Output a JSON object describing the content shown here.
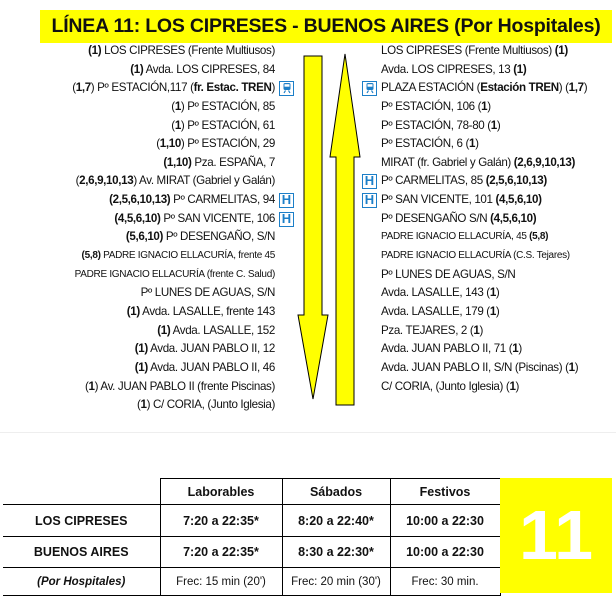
{
  "title": "LÍNEA 11:  LOS CIPRESES - BUENOS AIRES (Por Hospitales)",
  "colors": {
    "accent": "#ffff00",
    "icon": "#1c7fc8"
  },
  "outbound": [
    {
      "seg": [
        {
          "t": "(1)",
          "b": 1
        },
        {
          "t": " LOS CIPRESES (Frente Multiusos)"
        }
      ]
    },
    {
      "seg": [
        {
          "t": "(1)",
          "b": 1
        },
        {
          "t": " Avda. LOS CIPRESES, 84"
        }
      ]
    },
    {
      "seg": [
        {
          "t": "("
        },
        {
          "t": "1,7",
          "b": 1
        },
        {
          "t": ") Pº ESTACIÓN,117 ("
        },
        {
          "t": "fr. Estac. TREN",
          "b": 1
        },
        {
          "t": ")"
        }
      ],
      "icon": "train-icon"
    },
    {
      "seg": [
        {
          "t": "("
        },
        {
          "t": "1",
          "b": 1
        },
        {
          "t": ") Pº ESTACIÓN, 85"
        }
      ]
    },
    {
      "seg": [
        {
          "t": "("
        },
        {
          "t": "1",
          "b": 1
        },
        {
          "t": ") Pº ESTACIÓN, 61"
        }
      ]
    },
    {
      "seg": [
        {
          "t": "("
        },
        {
          "t": "1,10",
          "b": 1
        },
        {
          "t": ") Pº ESTACIÓN, 29"
        }
      ]
    },
    {
      "seg": [
        {
          "t": "(1,10)",
          "b": 1
        },
        {
          "t": " Pza. ESPAÑA, 7"
        }
      ]
    },
    {
      "seg": [
        {
          "t": "("
        },
        {
          "t": "2,6,9,10,13",
          "b": 1
        },
        {
          "t": ") Av. MIRAT (Gabriel y Galán)"
        }
      ]
    },
    {
      "seg": [
        {
          "t": "(2,5,6,10,13)",
          "b": 1
        },
        {
          "t": " Pº CARMELITAS, 94"
        }
      ],
      "icon": "hospital-icon"
    },
    {
      "seg": [
        {
          "t": "(4,5,6,10)",
          "b": 1
        },
        {
          "t": " Pº SAN VICENTE, 106"
        }
      ],
      "icon": "hospital-icon"
    },
    {
      "seg": [
        {
          "t": "(5,6,10)",
          "b": 1
        },
        {
          "t": "  Pº DESENGAÑO, S/N"
        }
      ]
    },
    {
      "seg": [
        {
          "t": "(5,8)",
          "b": 1
        },
        {
          "t": " PADRE IGNACIO ELLACURÍA,  frente 45"
        }
      ],
      "small": 1
    },
    {
      "seg": [
        {
          "t": "PADRE IGNACIO ELLACURÍA (frente C. Salud)"
        }
      ],
      "small": 1
    },
    {
      "seg": [
        {
          "t": "Pº LUNES DE AGUAS, S/N"
        }
      ]
    },
    {
      "seg": [
        {
          "t": "(1)",
          "b": 1
        },
        {
          "t": " Avda. LASALLE, frente 143"
        }
      ]
    },
    {
      "seg": [
        {
          "t": "(1)",
          "b": 1
        },
        {
          "t": " Avda. LASALLE, 152"
        }
      ]
    },
    {
      "seg": [
        {
          "t": "(1)",
          "b": 1
        },
        {
          "t": " Avda. JUAN PABLO II, 12"
        }
      ]
    },
    {
      "seg": [
        {
          "t": "(1)",
          "b": 1
        },
        {
          "t": " Avda. JUAN PABLO II, 46"
        }
      ]
    },
    {
      "seg": [
        {
          "t": "("
        },
        {
          "t": "1",
          "b": 1
        },
        {
          "t": ") Av. JUAN PABLO II (frente Piscinas)"
        }
      ]
    },
    {
      "seg": [
        {
          "t": "("
        },
        {
          "t": "1",
          "b": 1
        },
        {
          "t": ") C/ CORIA, (Junto Iglesia)"
        }
      ]
    }
  ],
  "inbound": [
    {
      "seg": [
        {
          "t": "LOS CIPRESES (Frente Multiusos) "
        },
        {
          "t": "(1)",
          "b": 1
        }
      ]
    },
    {
      "seg": [
        {
          "t": "Avda. LOS CIPRESES, 13 "
        },
        {
          "t": "(1)",
          "b": 1
        }
      ]
    },
    {
      "seg": [
        {
          "t": "PLAZA ESTACIÓN ("
        },
        {
          "t": "Estación TREN",
          "b": 1
        },
        {
          "t": ") ("
        },
        {
          "t": "1,7",
          "b": 1
        },
        {
          "t": ")"
        }
      ],
      "icon": "train-icon"
    },
    {
      "seg": [
        {
          "t": "Pº ESTACIÓN, 106  ("
        },
        {
          "t": "1",
          "b": 1
        },
        {
          "t": ")"
        }
      ]
    },
    {
      "seg": [
        {
          "t": "Pº ESTACIÓN, 78-80  ("
        },
        {
          "t": "1",
          "b": 1
        },
        {
          "t": ")"
        }
      ]
    },
    {
      "seg": [
        {
          "t": "Pº ESTACIÓN, 6 ("
        },
        {
          "t": "1",
          "b": 1
        },
        {
          "t": ")"
        }
      ]
    },
    {
      "seg": [
        {
          "t": "MIRAT (fr. Gabriel y Galán) "
        },
        {
          "t": "(2,6,9,10,13)",
          "b": 1
        }
      ]
    },
    {
      "seg": [
        {
          "t": "Pº CARMELITAS, 85 "
        },
        {
          "t": "(2,5,6,10,13)",
          "b": 1
        }
      ],
      "icon": "hospital-icon"
    },
    {
      "seg": [
        {
          "t": "Pº SAN VICENTE, 101 "
        },
        {
          "t": "(4,5,6,10)",
          "b": 1
        }
      ],
      "icon": "hospital-icon"
    },
    {
      "seg": [
        {
          "t": "Pº DESENGAÑO S/N "
        },
        {
          "t": "(4,5,6,10)",
          "b": 1
        }
      ]
    },
    {
      "seg": [
        {
          "t": "PADRE IGNACIO ELLACURÍA, 45 "
        },
        {
          "t": "(5,8)",
          "b": 1
        }
      ],
      "small": 1
    },
    {
      "seg": [
        {
          "t": "PADRE IGNACIO ELLACURÍA (C.S. Tejares)"
        }
      ],
      "small": 1
    },
    {
      "seg": [
        {
          "t": "Pº LUNES DE AGUAS, S/N"
        }
      ]
    },
    {
      "seg": [
        {
          "t": "Avda. LASALLE, 143 ("
        },
        {
          "t": "1",
          "b": 1
        },
        {
          "t": ")"
        }
      ]
    },
    {
      "seg": [
        {
          "t": "Avda. LASALLE, 179 ("
        },
        {
          "t": "1",
          "b": 1
        },
        {
          "t": ")"
        }
      ]
    },
    {
      "seg": [
        {
          "t": "Pza. TEJARES, 2 ("
        },
        {
          "t": "1",
          "b": 1
        },
        {
          "t": ")"
        }
      ]
    },
    {
      "seg": [
        {
          "t": "Avda. JUAN PABLO II, 71 ("
        },
        {
          "t": "1",
          "b": 1
        },
        {
          "t": ")"
        }
      ]
    },
    {
      "seg": [
        {
          "t": "Avda. JUAN PABLO II, S/N (Piscinas) ("
        },
        {
          "t": "1",
          "b": 1
        },
        {
          "t": ")"
        }
      ]
    },
    {
      "seg": [
        {
          "t": "C/ CORIA, (Junto Iglesia) ("
        },
        {
          "t": "1",
          "b": 1
        },
        {
          "t": ")"
        }
      ]
    }
  ],
  "icon_glyphs": {
    "hospital-icon": "H",
    "train-icon": "🚆"
  },
  "schedule": {
    "headers": [
      "",
      "Laborables",
      "Sábados",
      "Festivos"
    ],
    "rows": [
      [
        "LOS CIPRESES",
        "7:20 a 22:35*",
        "8:20 a 22:40*",
        "10:00 a 22:30"
      ],
      [
        "BUENOS AIRES",
        "7:20 a 22:35*",
        "8:30 a 22:30*",
        "10:00 a 22:30"
      ],
      [
        "(Por Hospitales)",
        "Frec: 15 min (20')",
        "Frec: 20 min (30')",
        "Frec: 30 min."
      ]
    ]
  },
  "badge": "11"
}
